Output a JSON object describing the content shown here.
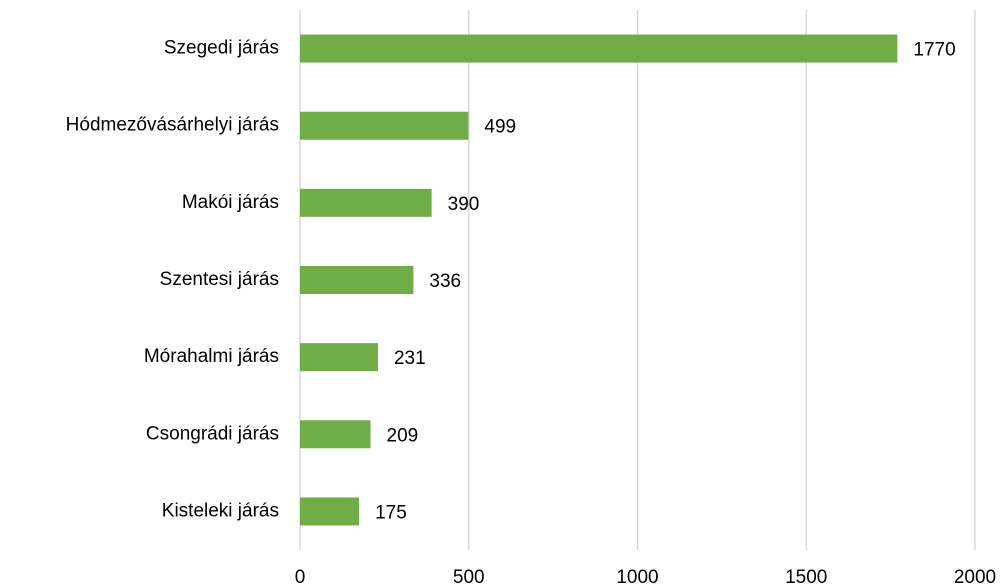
{
  "chart_data": {
    "type": "bar",
    "orientation": "horizontal",
    "categories": [
      "Szegedi járás",
      "Hódmezővásárhelyi járás",
      "Makói járás",
      "Szentesi járás",
      "Mórahalmi járás",
      "Csongrádi járás",
      "Kisteleki járás"
    ],
    "values": [
      1770,
      499,
      390,
      336,
      231,
      209,
      175
    ],
    "color": "#70ad47",
    "xlim": [
      0,
      2000
    ],
    "xticks": [
      0,
      500,
      1000,
      1500,
      2000
    ],
    "grid": true
  }
}
